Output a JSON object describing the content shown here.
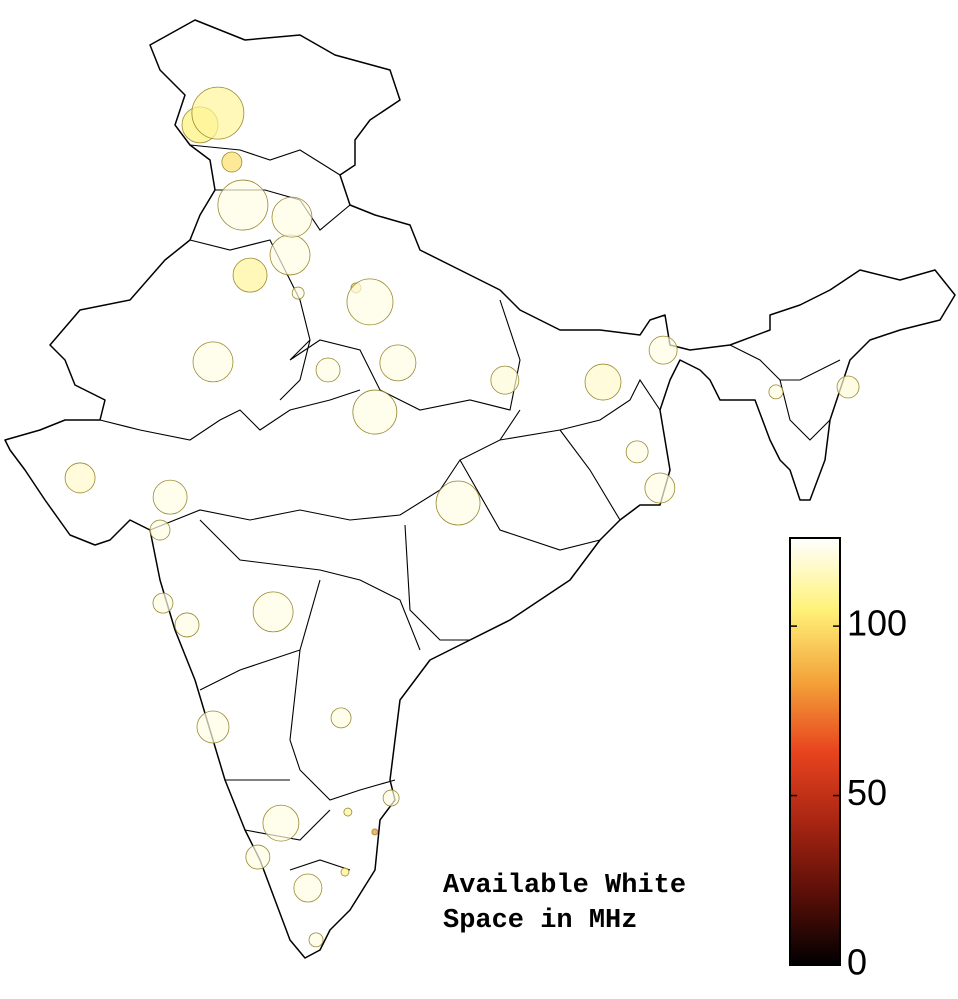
{
  "chart_data": {
    "type": "bubble_map",
    "title_lines": [
      "Available White",
      "Space in MHz"
    ],
    "lon": [
      74.55,
      74.0,
      74.98,
      75.32,
      76.83,
      76.77,
      75.54,
      79.23,
      74.4,
      80.09,
      77.94,
      83.38,
      86.4,
      79.38,
      88.25,
      93.94,
      70.31,
      73.08,
      81.94,
      87.45,
      88.15,
      76.25,
      73.6,
      72.86,
      72.77,
      74.4,
      78.34,
      76.49,
      77.32,
      75.78,
      77.57,
      79.88,
      91.72,
      77.02,
      78.8,
      78.46,
      78.55,
      79.38
    ],
    "lat": [
      33.99,
      33.63,
      32.49,
      31.17,
      30.8,
      29.64,
      29.02,
      28.2,
      26.36,
      26.33,
      26.11,
      25.8,
      25.74,
      24.82,
      26.72,
      25.59,
      22.8,
      22.21,
      22.03,
      23.6,
      22.49,
      18.69,
      18.29,
      18.96,
      21.2,
      15.16,
      15.44,
      12.21,
      10.22,
      11.17,
      8.63,
      12.98,
      25.44,
      28.47,
      28.63,
      10.71,
      12.55,
      11.94
    ],
    "values": [
      110,
      105,
      100,
      122,
      122,
      122,
      110,
      122,
      122,
      122,
      122,
      120,
      118,
      122,
      122,
      120,
      118,
      122,
      122,
      122,
      122,
      122,
      122,
      122,
      122,
      122,
      122,
      122,
      122,
      122,
      122,
      122,
      122,
      122,
      100,
      108,
      110,
      80
    ],
    "sizes": [
      26,
      18,
      10,
      25,
      20,
      20,
      17,
      23,
      20,
      18,
      12,
      14,
      18,
      22,
      14,
      11,
      15,
      17,
      22,
      11,
      15,
      20,
      12,
      10,
      10,
      16,
      10,
      18,
      14,
      12,
      7,
      8,
      7,
      6,
      5,
      4,
      4,
      3
    ],
    "clim": [
      0,
      126
    ],
    "cticks": [
      0,
      50,
      100
    ],
    "colormap": [
      "#000000",
      "#5a0f08",
      "#a82512",
      "#e8441e",
      "#f4a43a",
      "#fff27a",
      "#ffffff"
    ]
  }
}
